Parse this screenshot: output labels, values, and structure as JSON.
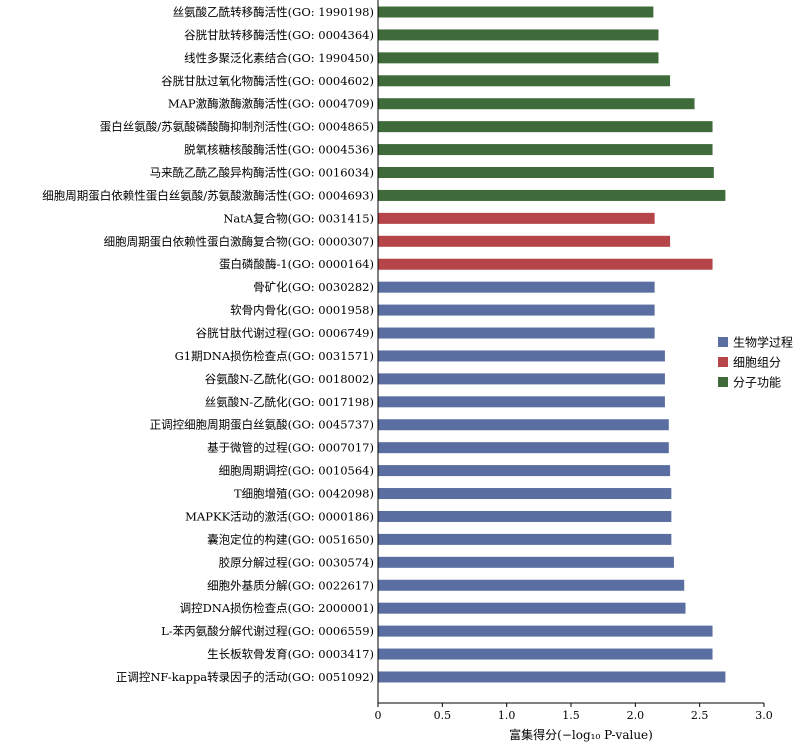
{
  "chart_data": {
    "type": "bar",
    "orientation": "horizontal",
    "categories": [
      "丝氨酸乙酰转移酶活性(GO: 1990198)",
      "谷胱甘肽转移酶活性(GO: 0004364)",
      "线性多聚泛化素结合(GO: 1990450)",
      "谷胱甘肽过氧化物酶活性(GO: 0004602)",
      "MAP激酶激酶激酶活性(GO: 0004709)",
      "蛋白丝氨酸/苏氨酸磷酸酶抑制剂活性(GO: 0004865)",
      "脱氧核糖核酸酶活性(GO: 0004536)",
      "马来酰乙酰乙酸异构酶活性(GO: 0016034)",
      "细胞周期蛋白依赖性蛋白丝氨酸/苏氨酸激酶活性(GO: 0004693)",
      "NatA复合物(GO: 0031415)",
      "细胞周期蛋白依赖性蛋白激酶复合物(GO: 0000307)",
      "蛋白磷酸酶-1(GO: 0000164)",
      "骨矿化(GO: 0030282)",
      "软骨内骨化(GO: 0001958)",
      "谷胱甘肽代谢过程(GO: 0006749)",
      "G1期DNA损伤检查点(GO: 0031571)",
      "谷氨酸N-乙酰化(GO: 0018002)",
      "丝氨酸N-乙酰化(GO: 0017198)",
      "正调控细胞周期蛋白丝氨酸(GO: 0045737)",
      "基于微管的过程(GO: 0007017)",
      "细胞周期调控(GO: 0010564)",
      "T细胞增殖(GO: 0042098)",
      "MAPKK活动的激活(GO: 0000186)",
      "囊泡定位的构建(GO: 0051650)",
      "胶原分解过程(GO: 0030574)",
      "细胞外基质分解(GO: 0022617)",
      "调控DNA损伤检查点(GO: 2000001)",
      "L-苯丙氨酸分解代谢过程(GO: 0006559)",
      "生长板软骨发育(GO: 0003417)",
      "正调控NF-kappa转录因子的活动(GO: 0051092)"
    ],
    "values": [
      2.14,
      2.18,
      2.18,
      2.27,
      2.46,
      2.6,
      2.6,
      2.61,
      2.7,
      2.15,
      2.27,
      2.6,
      2.15,
      2.15,
      2.15,
      2.23,
      2.23,
      2.23,
      2.26,
      2.26,
      2.27,
      2.28,
      2.28,
      2.28,
      2.3,
      2.38,
      2.39,
      2.6,
      2.6,
      2.7
    ],
    "groups": [
      "mf",
      "mf",
      "mf",
      "mf",
      "mf",
      "mf",
      "mf",
      "mf",
      "mf",
      "cc",
      "cc",
      "cc",
      "bp",
      "bp",
      "bp",
      "bp",
      "bp",
      "bp",
      "bp",
      "bp",
      "bp",
      "bp",
      "bp",
      "bp",
      "bp",
      "bp",
      "bp",
      "bp",
      "bp",
      "bp"
    ],
    "legend": [
      {
        "key": "bp",
        "name": "生物学过程",
        "color": "#5a6ea1"
      },
      {
        "key": "cc",
        "name": "细胞组分",
        "color": "#b64549"
      },
      {
        "key": "mf",
        "name": "分子功能",
        "color": "#3e6b39"
      }
    ],
    "legend_position": "right",
    "xlim": [
      0,
      3.0
    ],
    "xticks": [
      "0",
      "0.5",
      "1.0",
      "1.5",
      "2.0",
      "2.5",
      "3.0"
    ],
    "xlabel": "富集得分(−log₁₀ P-value)",
    "grid": false
  }
}
